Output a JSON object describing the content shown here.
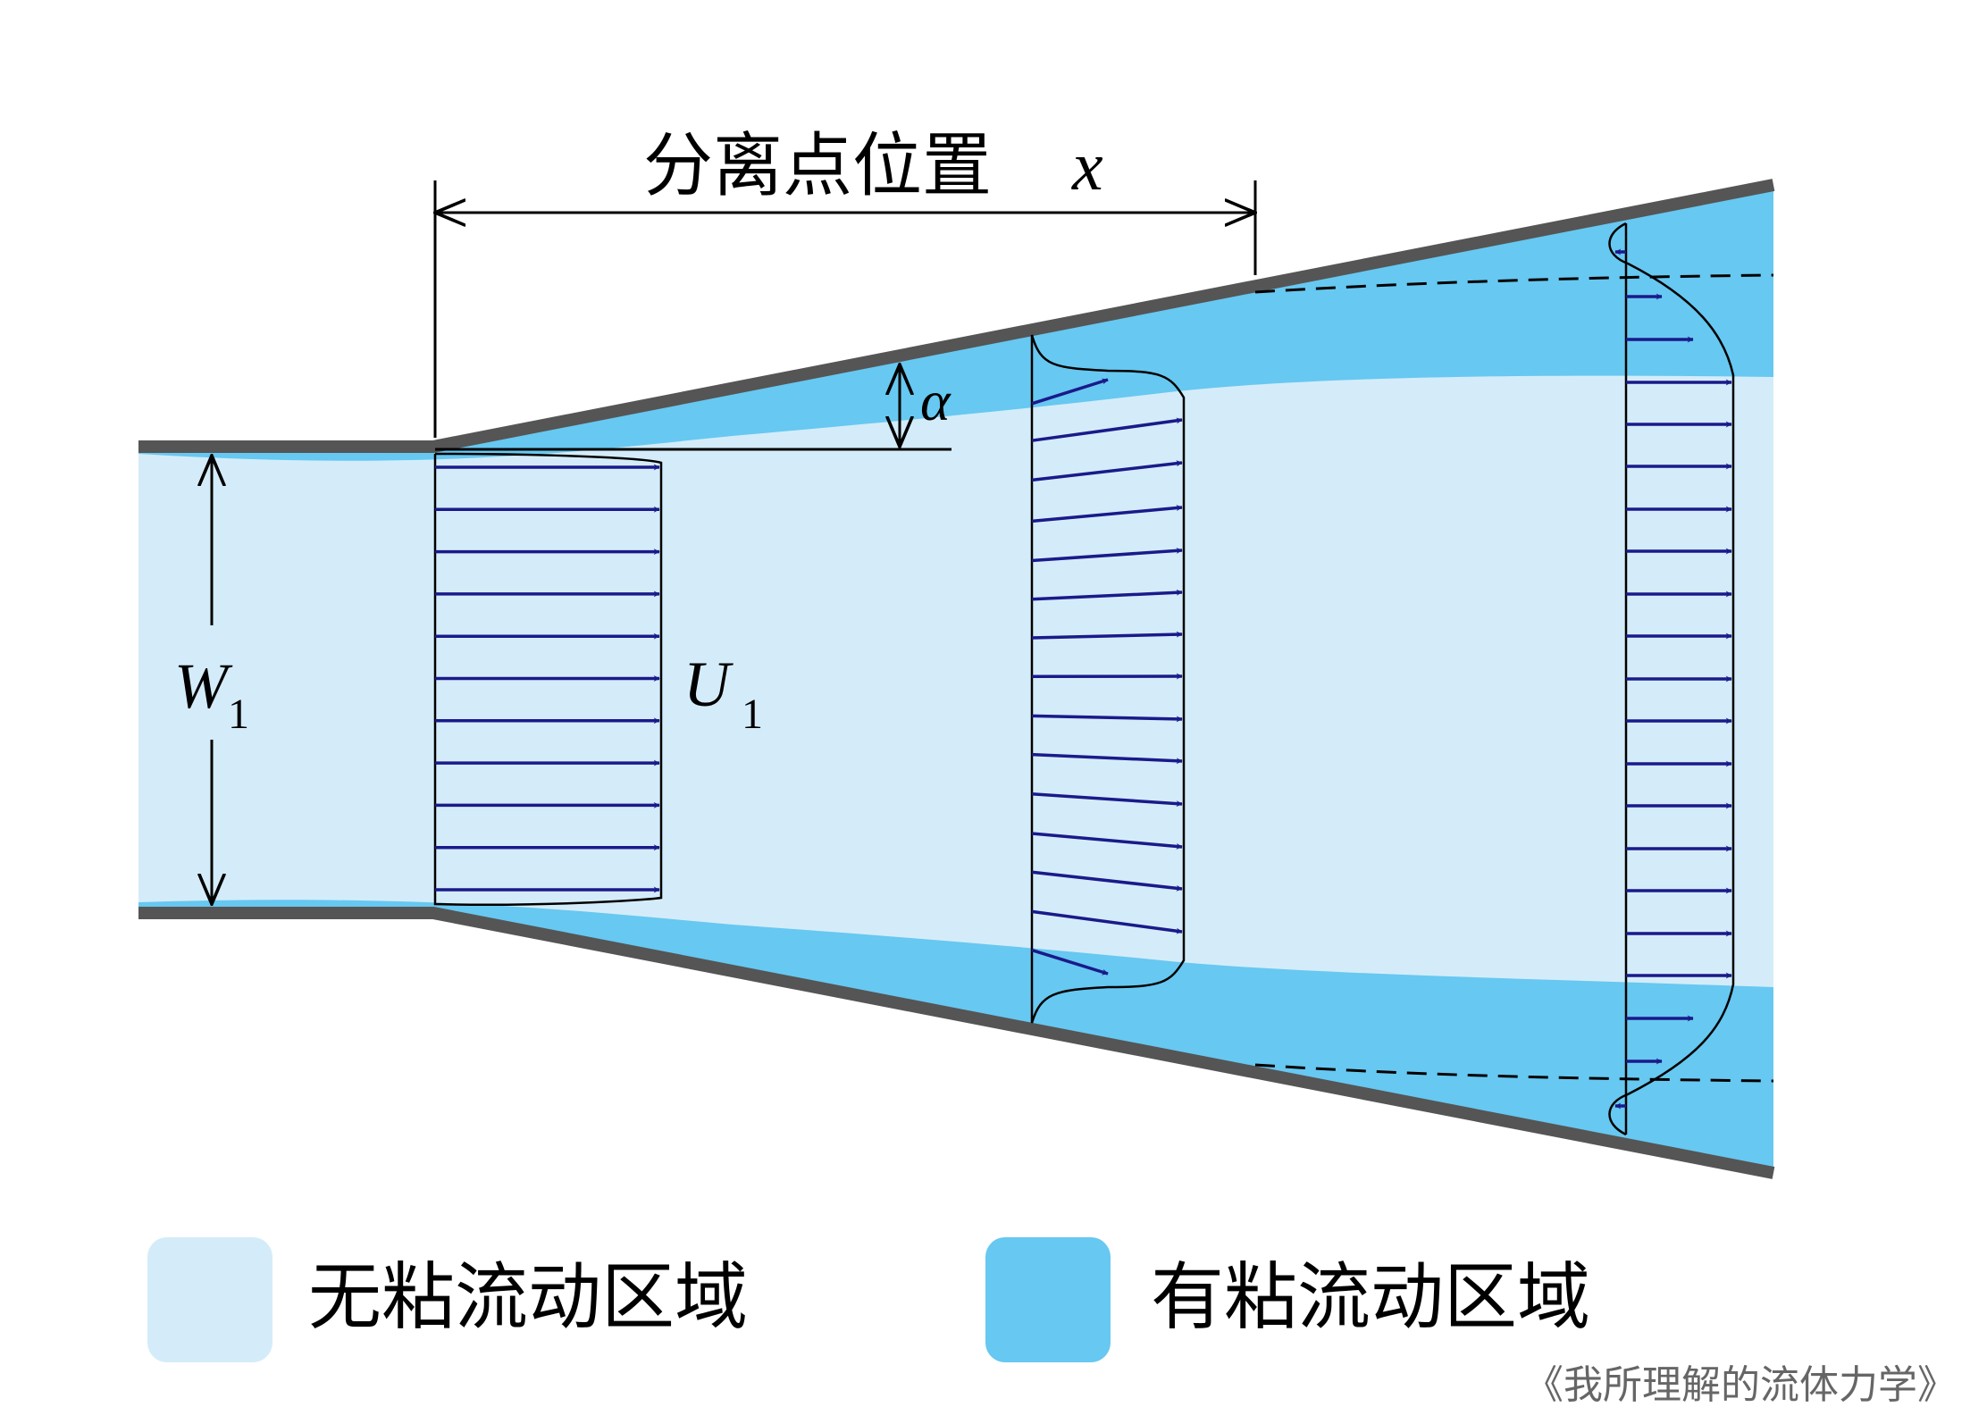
{
  "diagram": {
    "title_label": "分离点位置",
    "title_var": "x",
    "angle_label": "α",
    "width_label": "W",
    "width_sub": "1",
    "velocity_label": "U",
    "velocity_sub": "1"
  },
  "legend": {
    "inviscid_label": "无粘流动区域",
    "viscous_label": "有粘流动区域"
  },
  "watermark": "《我所理解的流体力学》",
  "colors": {
    "inviscid": "#d4ecf9",
    "viscous": "#67c8f1",
    "wall": "#555555",
    "arrow": "#1a1a8a"
  }
}
